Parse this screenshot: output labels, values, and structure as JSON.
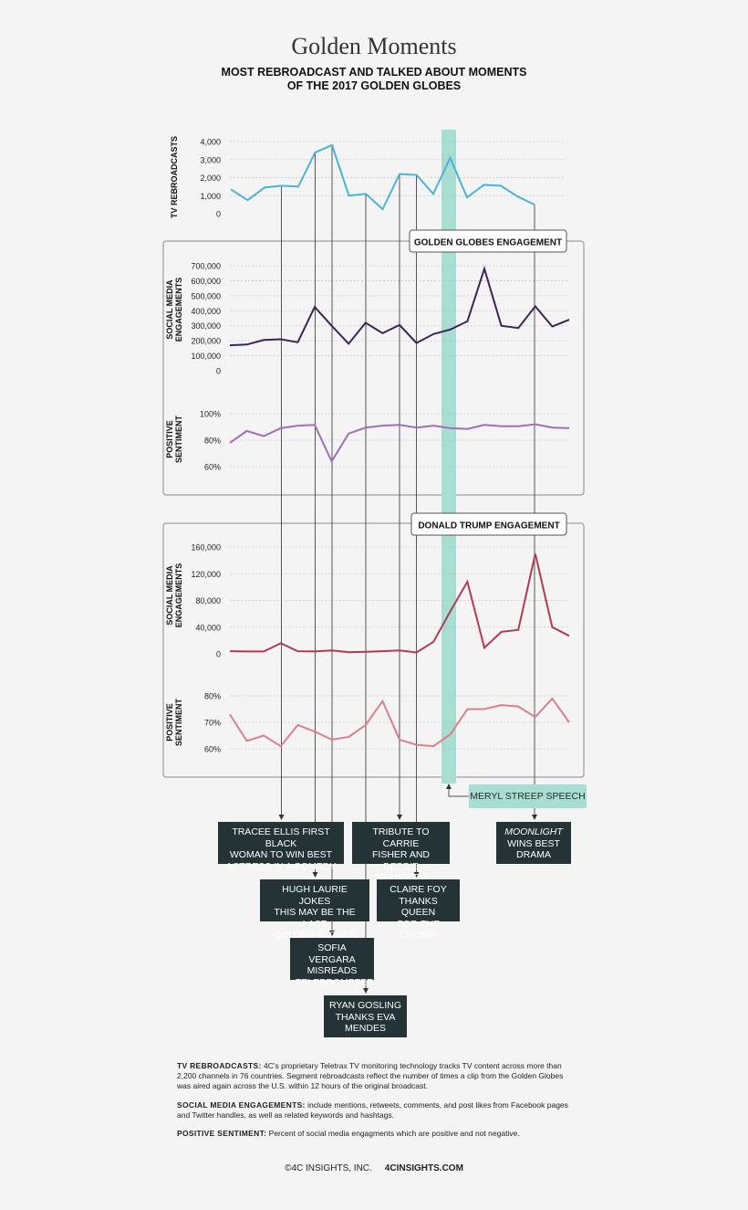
{
  "header": {
    "title": "Golden Moments",
    "subtitle_line1": "MOST REBROADCAST AND TALKED ABOUT MOMENTS",
    "subtitle_line2": "OF THE 2017 GOLDEN GLOBES"
  },
  "colors": {
    "tv": "#4bb4d6",
    "gg_engagement": "#3d2456",
    "gg_sentiment": "#9e6fb5",
    "trump_engagement": "#b03a52",
    "trump_sentiment": "#d9808a",
    "highlight": "#a8ddd1",
    "callout_bg": "#233336"
  },
  "chart_data": [
    {
      "id": "tv",
      "type": "line",
      "ylabel": "TV REBROADCASTS",
      "yticks": [
        "4,000",
        "3,000",
        "2,000",
        "1,000",
        "0"
      ],
      "ylim": [
        0,
        4000
      ],
      "values": [
        1350,
        750,
        1450,
        1550,
        1500,
        3400,
        3800,
        1000,
        1100,
        250,
        2200,
        2150,
        1100,
        3100,
        900,
        1600,
        1550,
        950,
        500
      ]
    },
    {
      "id": "gg_engagement",
      "type": "line",
      "ylabel": "SOCIAL MEDIA ENGAGEMENTS",
      "yticks": [
        "700,000",
        "600,000",
        "500,000",
        "400,000",
        "300,000",
        "200,000",
        "100,000",
        "0"
      ],
      "ylim": [
        0,
        700000
      ],
      "values": [
        170000,
        175000,
        205000,
        210000,
        190000,
        425000,
        300000,
        180000,
        320000,
        250000,
        305000,
        185000,
        245000,
        275000,
        330000,
        680000,
        300000,
        285000,
        430000,
        295000,
        340000
      ]
    },
    {
      "id": "gg_sentiment",
      "type": "line",
      "ylabel": "POSITIVE SENTIMENT",
      "yticks": [
        "100%",
        "80%",
        "60%"
      ],
      "ylim": [
        60,
        100
      ],
      "values": [
        78,
        87,
        83,
        89,
        91,
        91.5,
        64,
        85,
        89.5,
        91,
        91.5,
        89.5,
        91,
        89,
        88.5,
        91.5,
        90.5,
        90.5,
        92,
        89.5,
        89
      ]
    },
    {
      "id": "trump_engagement",
      "type": "line",
      "ylabel": "SOCIAL MEDIA ENGAGEMENTS",
      "yticks": [
        "160,000",
        "120,000",
        "80,000",
        "40,000",
        "0"
      ],
      "ylim": [
        0,
        160000
      ],
      "values": [
        4000,
        3500,
        3500,
        16000,
        4000,
        3500,
        5000,
        2500,
        3000,
        4000,
        5000,
        2000,
        18000,
        64000,
        108000,
        9000,
        33000,
        36000,
        150000,
        40000,
        27000
      ]
    },
    {
      "id": "trump_sentiment",
      "type": "line",
      "ylabel": "POSITIVE SENTIMENT",
      "yticks": [
        "80%",
        "70%",
        "60%"
      ],
      "ylim": [
        60,
        80
      ],
      "values": [
        73,
        63,
        65,
        61,
        69,
        66.5,
        63.5,
        64.5,
        69,
        78,
        63.5,
        61.5,
        61,
        65.5,
        75,
        75,
        76.5,
        76,
        72,
        79,
        70
      ]
    }
  ],
  "panels": {
    "golden_globes": "GOLDEN GLOBES ENGAGEMENT",
    "trump": "DONALD TRUMP ENGAGEMENT"
  },
  "highlight_label": "MERYL STREEP SPEECH",
  "callouts": [
    {
      "id": "tracee",
      "text": "TRACEE ELLIS FIRST BLACK\nWOMAN TO WIN BEST\nACTRESS IN A COMEDY"
    },
    {
      "id": "tribute",
      "text": "TRIBUTE TO CARRIE\nFISHER AND DEBBIE\nREYNOLDS"
    },
    {
      "id": "moonlight_title",
      "text": "MOONLIGHT"
    },
    {
      "id": "moonlight_rest",
      "text": "WINS BEST\nDRAMA"
    },
    {
      "id": "hugh",
      "text": "HUGH LAURIE JOKES\nTHIS MAY BE THE LAST\nGOLDEN GLOBES"
    },
    {
      "id": "claire_lines",
      "text": "CLAIRE FOY\nTHANKS QUEEN\nFOR"
    },
    {
      "id": "claire_show",
      "text": "THE CROWN"
    },
    {
      "id": "sofia",
      "text": "SOFIA VERGARA\nMISREADS\nTELEPROMPTER"
    },
    {
      "id": "ryan",
      "text": "RYAN GOSLING\nTHANKS EVA\nMENDES"
    }
  ],
  "notes": {
    "tv_term": "TV REBROADCASTS:",
    "tv_text": "4C's proprietary Teletrax TV monitoring technology tracks TV content across more than 2,200 channels in 76 countries. Segment rebroadcasts reflect the number of times a clip from the Golden Globes was aired again across the U.S. within 12 hours of the original broadcast.",
    "social_term": "SOCIAL MEDIA ENGAGEMENTS:",
    "social_text": "include mentions, retweets, comments, and post likes from Facebook pages and Twitter handles, as well as related keywords and hashtags.",
    "sent_term": "POSITIVE SENTIMENT:",
    "sent_text": "Percent of social media engagments which are positive and not negative."
  },
  "footer": {
    "copyright": "©4C INSIGHTS, INC.",
    "site": "4CINSIGHTS.COM"
  }
}
